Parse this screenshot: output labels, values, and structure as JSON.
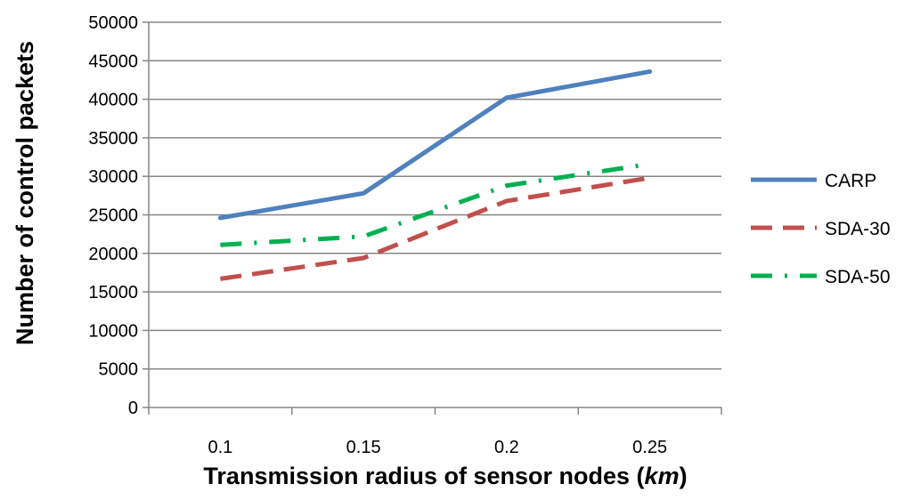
{
  "chart_data": {
    "type": "line",
    "categories": [
      "0.1",
      "0.15",
      "0.2",
      "0.25"
    ],
    "series": [
      {
        "name": "CARP",
        "values": [
          24600,
          27800,
          40200,
          43600
        ],
        "color": "#4f81bd",
        "style": "solid"
      },
      {
        "name": "SDA-30",
        "values": [
          16700,
          19400,
          26800,
          29800
        ],
        "color": "#c0504d",
        "style": "dashed"
      },
      {
        "name": "SDA-50",
        "values": [
          21100,
          22200,
          28800,
          31600
        ],
        "color": "#00b050",
        "style": "dash-dot"
      }
    ],
    "y_ticks": [
      "0",
      "5000",
      "10000",
      "15000",
      "20000",
      "25000",
      "30000",
      "35000",
      "40000",
      "45000",
      "50000"
    ],
    "ylim": [
      0,
      50000
    ],
    "xlabel": {
      "main": "Transmission radius of sensor nodes (",
      "unit": "km",
      "close": ")"
    },
    "ylabel": "Number of control packets",
    "grid": true,
    "legend_position": "right"
  }
}
